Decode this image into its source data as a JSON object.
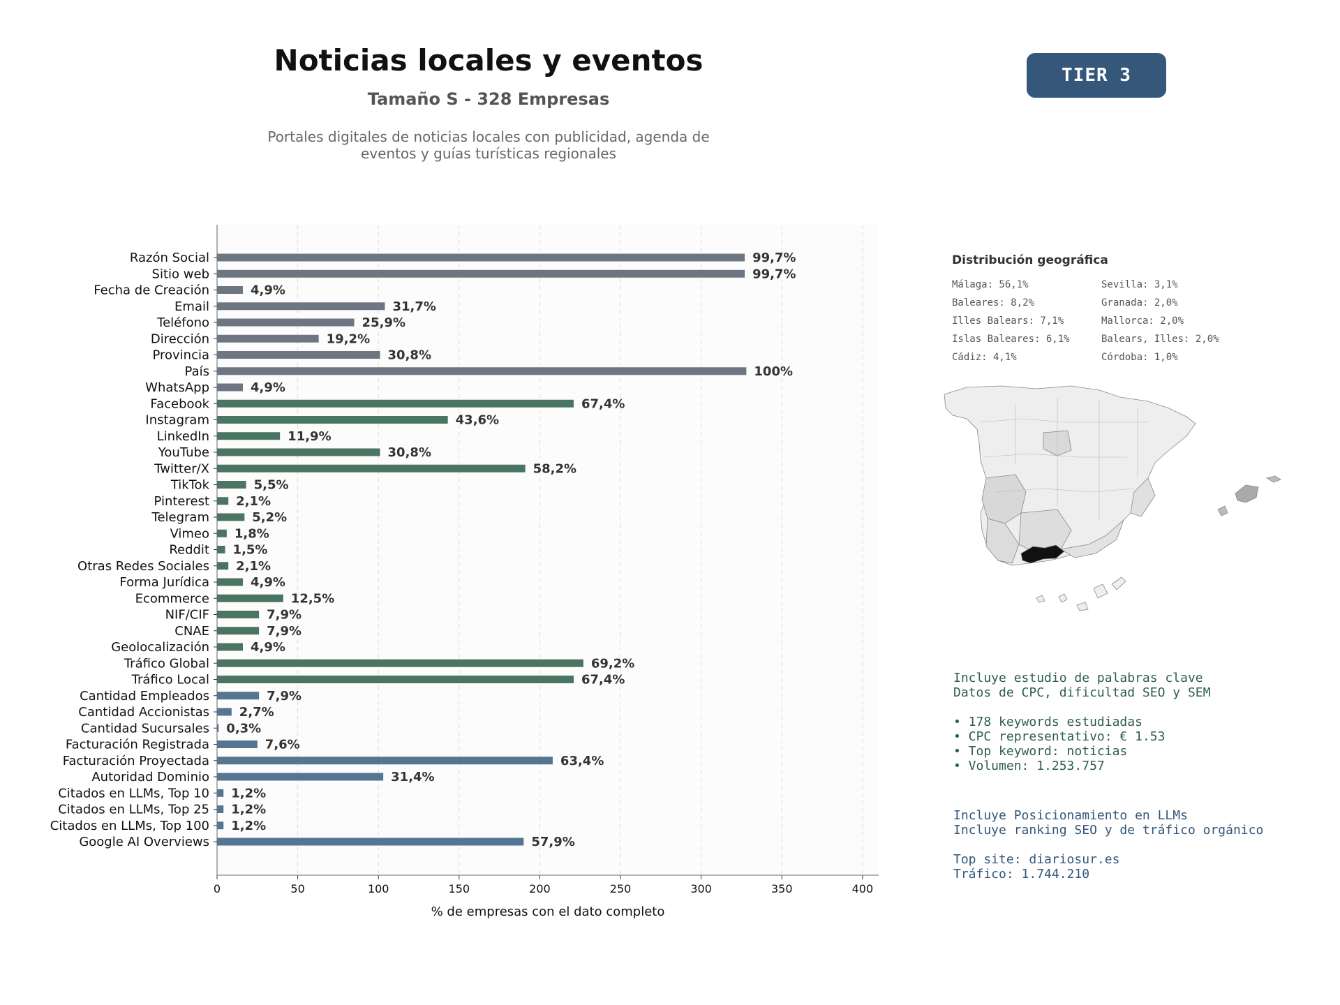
{
  "header": {
    "title": "Noticias locales y eventos",
    "subtitle": "Tamaño S - 328 Empresas",
    "description_line1": "Portales digitales de noticias locales con publicidad, agenda de",
    "description_line2": "eventos y guías turísticas regionales",
    "tier": "TIER 3"
  },
  "colors": {
    "gray": "#6e7681",
    "green": "#4a7563",
    "blue": "#557592",
    "tier_bg": "#34577a",
    "map_highlight": "#111111"
  },
  "chart_data": {
    "type": "bar",
    "orientation": "horizontal",
    "xlabel": "% de empresas con el dato completo",
    "xlim": [
      0,
      410
    ],
    "xticks": [
      0,
      50,
      100,
      150,
      200,
      250,
      300,
      350,
      400
    ],
    "grid": "vertical dashed",
    "categories": [
      "Razón Social",
      "Sitio web",
      "Fecha de Creación",
      "Email",
      "Teléfono",
      "Dirección",
      "Provincia",
      "País",
      "WhatsApp",
      "Facebook",
      "Instagram",
      "LinkedIn",
      "YouTube",
      "Twitter/X",
      "TikTok",
      "Pinterest",
      "Telegram",
      "Vimeo",
      "Reddit",
      "Otras Redes Sociales",
      "Forma Jurídica",
      "Ecommerce",
      "NIF/CIF",
      "CNAE",
      "Geolocalización",
      "Tráfico Global",
      "Tráfico Local",
      "Cantidad Empleados",
      "Cantidad Accionistas",
      "Cantidad Sucursales",
      "Facturación Registrada",
      "Facturación Proyectada",
      "Autoridad Dominio",
      "Citados en LLMs, Top 10",
      "Citados en LLMs, Top 25",
      "Citados en LLMs, Top 100",
      "Google AI Overviews"
    ],
    "values": [
      327,
      327,
      16,
      104,
      85,
      63,
      101,
      328,
      16,
      221,
      143,
      39,
      101,
      191,
      18,
      7,
      17,
      6,
      5,
      7,
      16,
      41,
      26,
      26,
      16,
      227,
      221,
      26,
      9,
      1,
      25,
      208,
      103,
      4,
      4,
      4,
      190
    ],
    "labels": [
      "99,7%",
      "99,7%",
      "4,9%",
      "31,7%",
      "25,9%",
      "19,2%",
      "30,8%",
      "100%",
      "4,9%",
      "67,4%",
      "43,6%",
      "11,9%",
      "30,8%",
      "58,2%",
      "5,5%",
      "2,1%",
      "5,2%",
      "1,8%",
      "1,5%",
      "2,1%",
      "4,9%",
      "12,5%",
      "7,9%",
      "7,9%",
      "4,9%",
      "69,2%",
      "67,4%",
      "7,9%",
      "2,7%",
      "0,3%",
      "7,6%",
      "63,4%",
      "31,4%",
      "1,2%",
      "1,2%",
      "1,2%",
      "57,9%"
    ],
    "groups": [
      "gray",
      "gray",
      "gray",
      "gray",
      "gray",
      "gray",
      "gray",
      "gray",
      "gray",
      "green",
      "green",
      "green",
      "green",
      "green",
      "green",
      "green",
      "green",
      "green",
      "green",
      "green",
      "green",
      "green",
      "green",
      "green",
      "green",
      "green",
      "green",
      "blue",
      "blue",
      "blue",
      "blue",
      "blue",
      "blue",
      "blue",
      "blue",
      "blue",
      "blue"
    ]
  },
  "geo": {
    "title": "Distribución geográfica",
    "items": [
      "Málaga: 56,1%",
      "Sevilla: 3,1%",
      "Baleares: 8,2%",
      "Granada: 2,0%",
      "Illes Balears: 7,1%",
      "Mallorca: 2,0%",
      "Islas Baleares: 6,1%",
      "Balears, Illes: 2,0%",
      "Cádiz: 4,1%",
      "Córdoba: 1,0%"
    ]
  },
  "keywords": {
    "line1": "Incluye estudio de palabras clave",
    "line2": "Datos de CPC, dificultad SEO y SEM",
    "bullet1": "• 178 keywords estudiadas",
    "bullet2": "• CPC representativo: € 1.53",
    "bullet3": "• Top keyword: noticias",
    "bullet4": "• Volumen: 1.253.757"
  },
  "seo": {
    "line1": "Incluye Posicionamiento en LLMs",
    "line2": "Incluye ranking SEO y de tráfico orgánico",
    "top_site": "Top site: diariosur.es",
    "traffic": "Tráfico: 1.744.210"
  }
}
